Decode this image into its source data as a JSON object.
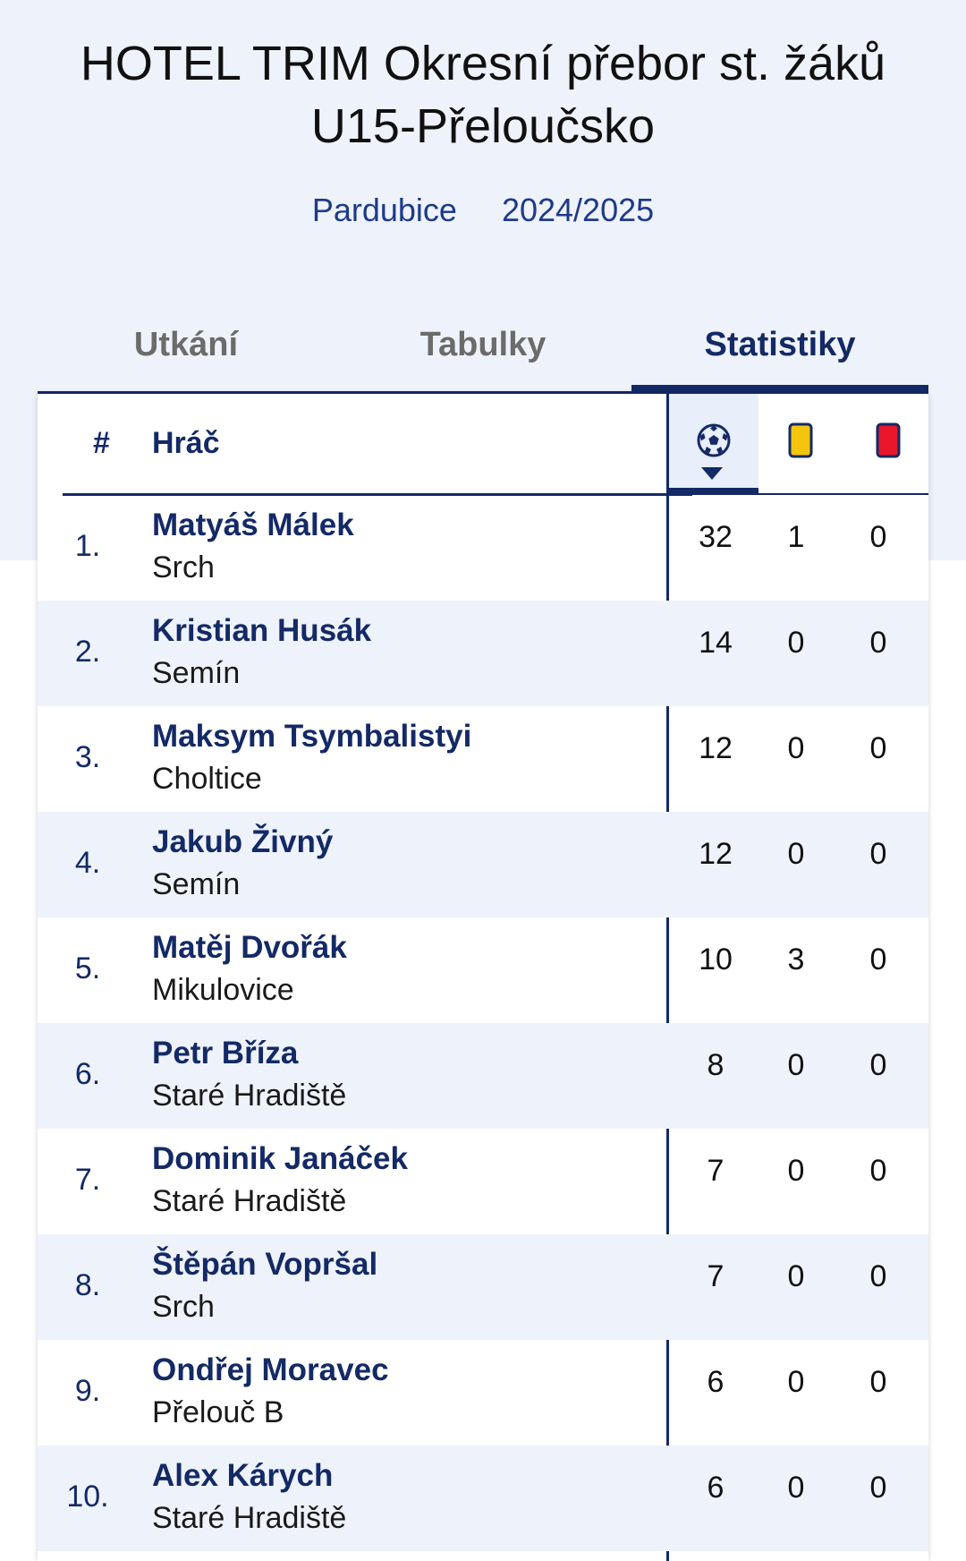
{
  "header": {
    "title_line1": "HOTEL TRIM Okresní přebor st. žáků",
    "title_line2": "U15-Přeloučsko",
    "region": "Pardubice",
    "season": "2024/2025"
  },
  "tabs": [
    {
      "label": "Utkání",
      "active": false
    },
    {
      "label": "Tabulky",
      "active": false
    },
    {
      "label": "Statistiky",
      "active": true
    }
  ],
  "table": {
    "col_rank": "#",
    "col_player": "Hráč",
    "icons": [
      "soccer-ball-icon",
      "yellow-card-icon",
      "red-card-icon"
    ],
    "sort_column": "goals",
    "colors": {
      "yellow": "#f4c60b",
      "red": "#e8172b",
      "accent": "#142a66"
    },
    "rows": [
      {
        "rank": "1.",
        "name": "Matyáš Málek",
        "club": "Srch",
        "goals": "32",
        "yellow": "1",
        "red": "0"
      },
      {
        "rank": "2.",
        "name": "Kristian Husák",
        "club": "Semín",
        "goals": "14",
        "yellow": "0",
        "red": "0"
      },
      {
        "rank": "3.",
        "name": "Maksym Tsymbalistyi",
        "club": "Choltice",
        "goals": "12",
        "yellow": "0",
        "red": "0"
      },
      {
        "rank": "4.",
        "name": "Jakub Živný",
        "club": "Semín",
        "goals": "12",
        "yellow": "0",
        "red": "0"
      },
      {
        "rank": "5.",
        "name": "Matěj Dvořák",
        "club": "Mikulovice",
        "goals": "10",
        "yellow": "3",
        "red": "0"
      },
      {
        "rank": "6.",
        "name": "Petr Bříza",
        "club": "Staré Hradiště",
        "goals": "8",
        "yellow": "0",
        "red": "0"
      },
      {
        "rank": "7.",
        "name": "Dominik Janáček",
        "club": "Staré Hradiště",
        "goals": "7",
        "yellow": "0",
        "red": "0"
      },
      {
        "rank": "8.",
        "name": "Štěpán Vopršal",
        "club": "Srch",
        "goals": "7",
        "yellow": "0",
        "red": "0"
      },
      {
        "rank": "9.",
        "name": "Ondřej Moravec",
        "club": "Přelouč B",
        "goals": "6",
        "yellow": "0",
        "red": "0"
      },
      {
        "rank": "10.",
        "name": "Alex Kárych",
        "club": "Staré Hradiště",
        "goals": "6",
        "yellow": "0",
        "red": "0"
      }
    ]
  }
}
